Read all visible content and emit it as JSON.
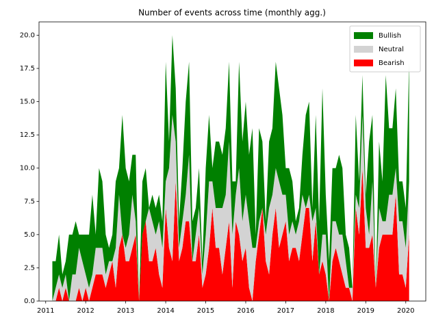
{
  "chart_data": {
    "type": "stacked_area",
    "title": "Number of events across time (monthly agg.)",
    "x": [
      "2011-03",
      "2011-04",
      "2011-05",
      "2011-06",
      "2011-07",
      "2011-08",
      "2011-09",
      "2011-10",
      "2011-11",
      "2011-12",
      "2012-01",
      "2012-02",
      "2012-03",
      "2012-04",
      "2012-05",
      "2012-06",
      "2012-07",
      "2012-08",
      "2012-09",
      "2012-10",
      "2012-11",
      "2012-12",
      "2013-01",
      "2013-02",
      "2013-03",
      "2013-04",
      "2013-05",
      "2013-06",
      "2013-07",
      "2013-08",
      "2013-09",
      "2013-10",
      "2013-11",
      "2013-12",
      "2014-01",
      "2014-02",
      "2014-03",
      "2014-04",
      "2014-05",
      "2014-06",
      "2014-07",
      "2014-08",
      "2014-09",
      "2014-10",
      "2014-11",
      "2014-12",
      "2015-01",
      "2015-02",
      "2015-03",
      "2015-04",
      "2015-05",
      "2015-06",
      "2015-07",
      "2015-08",
      "2015-09",
      "2015-10",
      "2015-11",
      "2015-12",
      "2016-01",
      "2016-02",
      "2016-03",
      "2016-04",
      "2016-05",
      "2016-06",
      "2016-07",
      "2016-08",
      "2016-09",
      "2016-10",
      "2016-11",
      "2016-12",
      "2017-01",
      "2017-02",
      "2017-03",
      "2017-04",
      "2017-05",
      "2017-06",
      "2017-07",
      "2017-08",
      "2017-09",
      "2017-10",
      "2017-11",
      "2017-12",
      "2018-01",
      "2018-02",
      "2018-03",
      "2018-04",
      "2018-05",
      "2018-06",
      "2018-07",
      "2018-08",
      "2018-09",
      "2018-10",
      "2018-11",
      "2018-12",
      "2019-01",
      "2019-02",
      "2019-03",
      "2019-04",
      "2019-05",
      "2019-06",
      "2019-07",
      "2019-08",
      "2019-09",
      "2019-10",
      "2019-11",
      "2019-12",
      "2020-01",
      "2020-02"
    ],
    "series": [
      {
        "name": "Bullish",
        "color": "#008000",
        "values": [
          3,
          2,
          3,
          1,
          1,
          5,
          3,
          4,
          1,
          2,
          3,
          4,
          6,
          1,
          6,
          5,
          3,
          1,
          2,
          5,
          2,
          9,
          6,
          4,
          3,
          5,
          0,
          4,
          4,
          0,
          2,
          2,
          2,
          2,
          9,
          2,
          6,
          4,
          2,
          4,
          7,
          7,
          3,
          2,
          3,
          1,
          5,
          5,
          1,
          5,
          5,
          4,
          5,
          6,
          4,
          1,
          8,
          6,
          7,
          5,
          9,
          1,
          7,
          5,
          1,
          5,
          5,
          8,
          7,
          6,
          2,
          5,
          3,
          1,
          1,
          3,
          7,
          7,
          1,
          7,
          4,
          11,
          3,
          3,
          4,
          4,
          6,
          5,
          2,
          3,
          0,
          6,
          2,
          3,
          1,
          7,
          5,
          0,
          5,
          3,
          11,
          5,
          5,
          6,
          3,
          3,
          3,
          9
        ]
      },
      {
        "name": "Neutral",
        "color": "#d3d3d3",
        "values": [
          0,
          1,
          1,
          1,
          1,
          0,
          2,
          2,
          3,
          3,
          1,
          1,
          1,
          2,
          2,
          2,
          1,
          1,
          0,
          3,
          4,
          0,
          1,
          2,
          4,
          1,
          0,
          0,
          0,
          4,
          3,
          1,
          4,
          3,
          2,
          6,
          11,
          3,
          1,
          2,
          2,
          5,
          0,
          2,
          2,
          1,
          3,
          5,
          2,
          3,
          3,
          5,
          4,
          6,
          4,
          2,
          5,
          3,
          4,
          5,
          4,
          1,
          1,
          0,
          2,
          5,
          3,
          3,
          5,
          3,
          2,
          2,
          2,
          1,
          3,
          3,
          0,
          1,
          3,
          1,
          0,
          2,
          3,
          0,
          3,
          2,
          2,
          3,
          2,
          0,
          1,
          1,
          2,
          4,
          3,
          1,
          4,
          0,
          3,
          1,
          1,
          3,
          3,
          2,
          4,
          4,
          3,
          4
        ]
      },
      {
        "name": "Bearish",
        "color": "#ff0000",
        "values": [
          0,
          0,
          1,
          0,
          1,
          0,
          0,
          0,
          1,
          0,
          1,
          0,
          1,
          2,
          2,
          2,
          1,
          2,
          3,
          1,
          4,
          5,
          3,
          3,
          4,
          5,
          0,
          5,
          6,
          3,
          3,
          4,
          2,
          1,
          7,
          4,
          3,
          9,
          3,
          4,
          6,
          6,
          3,
          3,
          5,
          1,
          2,
          4,
          7,
          4,
          4,
          2,
          4,
          6,
          1,
          6,
          5,
          3,
          4,
          1,
          0,
          3,
          5,
          7,
          3,
          2,
          5,
          7,
          4,
          5,
          6,
          3,
          4,
          4,
          3,
          5,
          7,
          7,
          3,
          6,
          2,
          3,
          2,
          0,
          3,
          4,
          3,
          2,
          1,
          1,
          0,
          7,
          5,
          10,
          4,
          4,
          5,
          1,
          4,
          5,
          5,
          5,
          5,
          8,
          2,
          2,
          1,
          5
        ]
      }
    ],
    "xlim": [
      "2010-11",
      "2020-07"
    ],
    "xticks": [
      "2011",
      "2012",
      "2013",
      "2014",
      "2015",
      "2016",
      "2017",
      "2018",
      "2019",
      "2020"
    ],
    "ylim": [
      0,
      21
    ],
    "yticks": [
      {
        "value": 0,
        "label": "0.0"
      },
      {
        "value": 2.5,
        "label": "2.5"
      },
      {
        "value": 5,
        "label": "5.0"
      },
      {
        "value": 7.5,
        "label": "7.5"
      },
      {
        "value": 10,
        "label": "10.0"
      },
      {
        "value": 12.5,
        "label": "12.5"
      },
      {
        "value": 15,
        "label": "15.0"
      },
      {
        "value": 17.5,
        "label": "17.5"
      },
      {
        "value": 20,
        "label": "20.0"
      }
    ],
    "legend": "upper right"
  }
}
